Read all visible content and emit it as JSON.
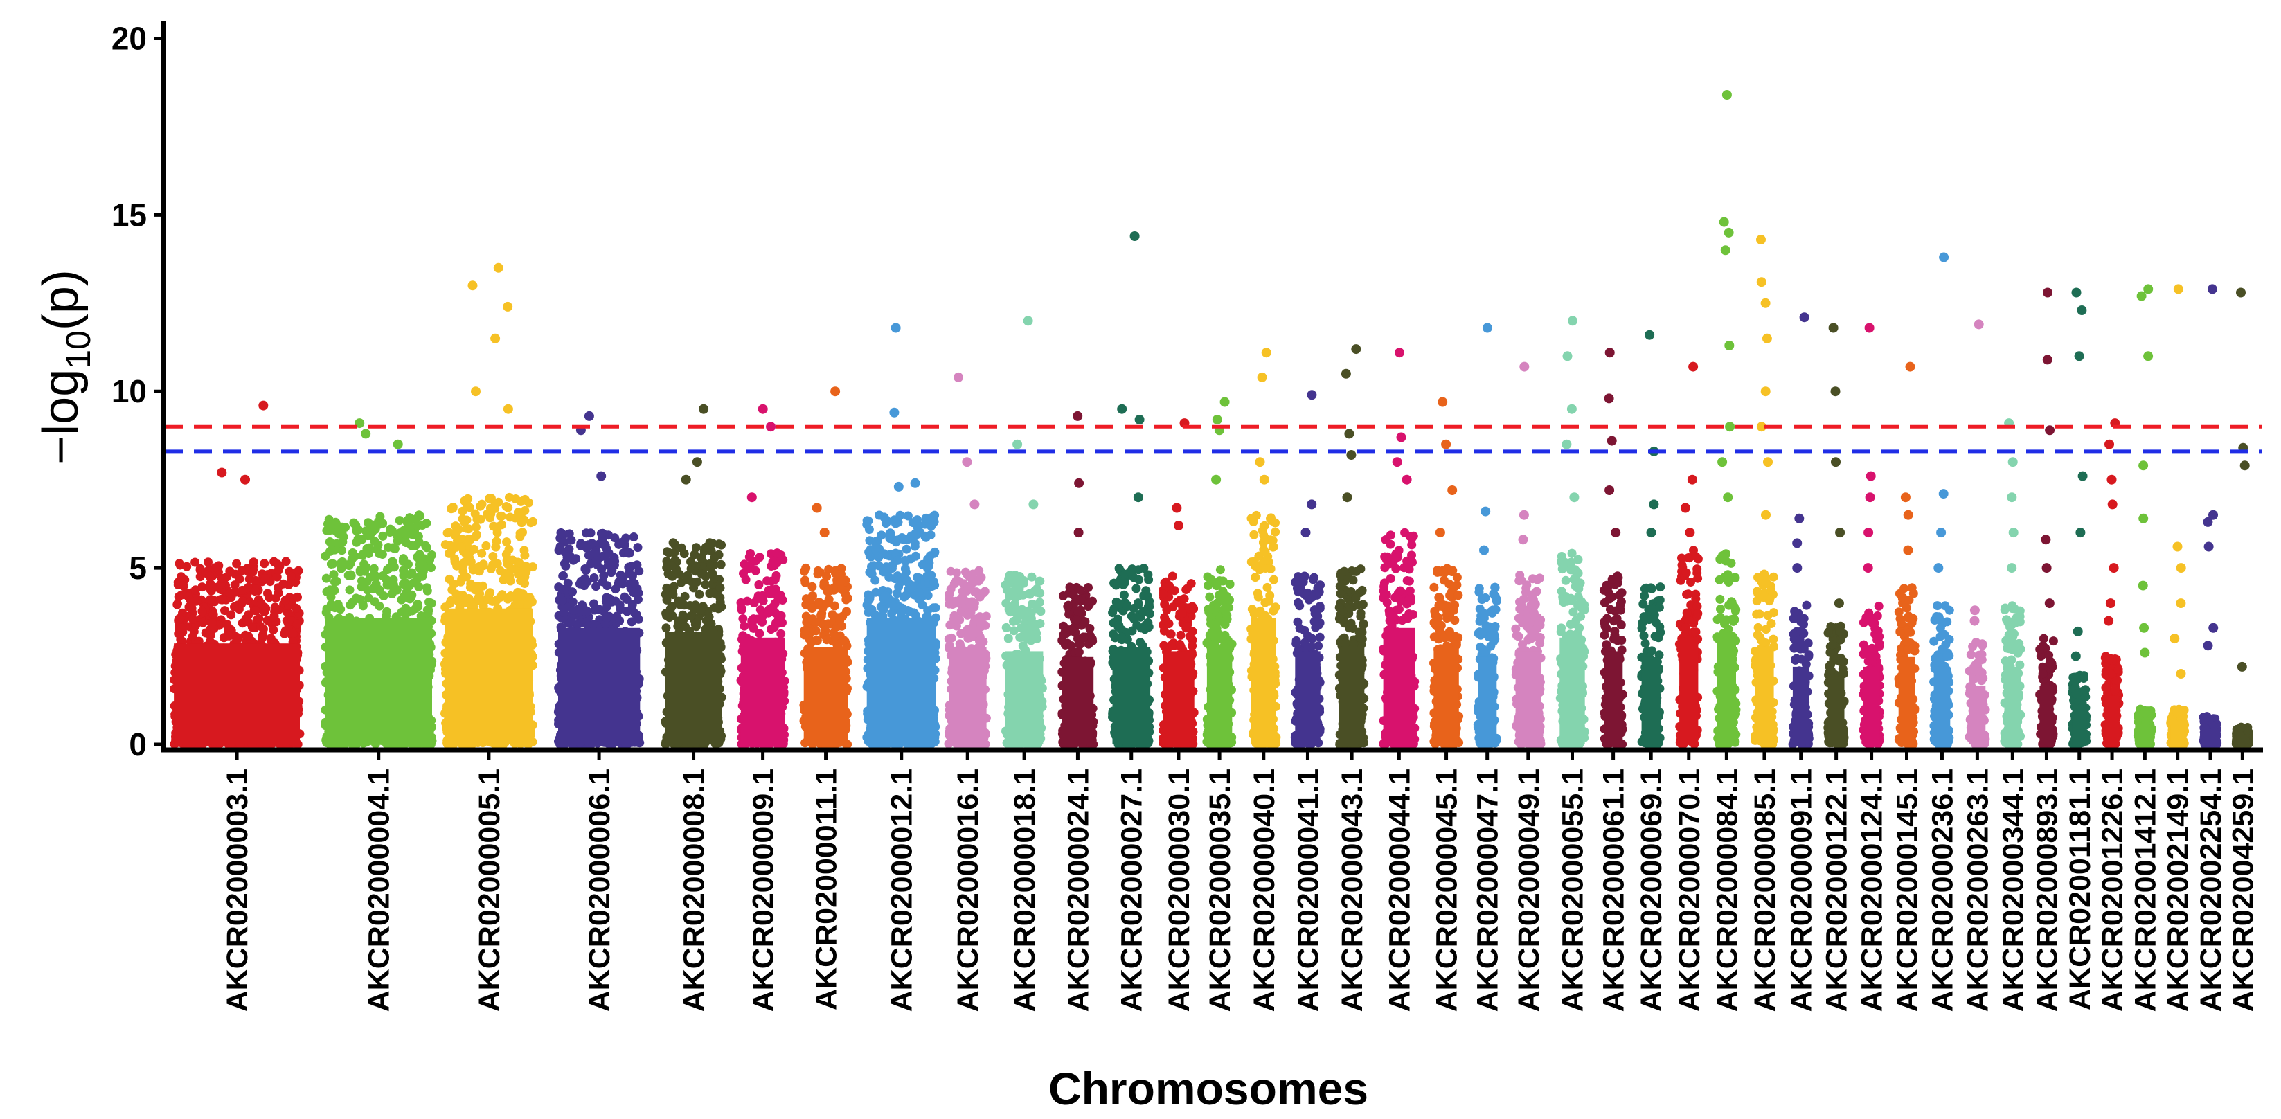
{
  "chart_data": {
    "type": "scatter",
    "title": "",
    "xlabel": "Chromosomes",
    "ylabel_prefix": "−log",
    "ylabel_sub": "10",
    "ylabel_suffix": "(p)",
    "ylim": [
      0,
      20.5
    ],
    "yticks": [
      0,
      5,
      10,
      15,
      20
    ],
    "thresholds": [
      {
        "name": "significance",
        "value": 9.0,
        "color": "#ee1c25"
      },
      {
        "name": "suggestive",
        "value": 8.3,
        "color": "#1f2de6"
      }
    ],
    "palette": [
      "#d7191f",
      "#6ec23a",
      "#f6c125",
      "#44348f",
      "#4a4f25",
      "#d8126d",
      "#e8631b",
      "#4798d8",
      "#d584bf",
      "#84d4ae",
      "#7d1533",
      "#1e6d54"
    ],
    "series": [
      {
        "name": "AKCR02000003.1",
        "start": 0,
        "end": 1.0,
        "maxBase": 5.2,
        "outliers": [
          7.5,
          7.7,
          9.6
        ],
        "color": "#d7191f"
      },
      {
        "name": "AKCR02000004.1",
        "start": 1.2,
        "end": 2.05,
        "maxBase": 6.5,
        "outliers": [
          8.5,
          8.8,
          9.1
        ],
        "color": "#6ec23a"
      },
      {
        "name": "AKCR02000005.1",
        "start": 2.15,
        "end": 2.85,
        "maxBase": 7.0,
        "outliers": [
          9.5,
          10.0,
          11.5,
          12.4,
          13.0,
          13.5
        ],
        "color": "#f6c125"
      },
      {
        "name": "AKCR02000006.1",
        "start": 3.05,
        "end": 3.7,
        "maxBase": 6.0,
        "outliers": [
          7.6,
          8.9,
          9.3
        ],
        "color": "#44348f"
      },
      {
        "name": "AKCR02000008.1",
        "start": 3.9,
        "end": 4.35,
        "maxBase": 5.8,
        "outliers": [
          7.5,
          8.0,
          9.5
        ],
        "color": "#4a4f25"
      },
      {
        "name": "AKCR02000009.1",
        "start": 4.5,
        "end": 4.85,
        "maxBase": 5.5,
        "outliers": [
          7.0,
          9.0,
          9.5
        ],
        "color": "#d8126d"
      },
      {
        "name": "AKCR02000011.1",
        "start": 5.0,
        "end": 5.35,
        "maxBase": 5.0,
        "outliers": [
          6.0,
          6.7,
          10.0
        ],
        "color": "#e8631b"
      },
      {
        "name": "AKCR02000012.1",
        "start": 5.5,
        "end": 6.05,
        "maxBase": 6.5,
        "outliers": [
          7.3,
          7.4,
          9.4,
          11.8
        ],
        "color": "#4798d8"
      },
      {
        "name": "AKCR02000016.1",
        "start": 6.15,
        "end": 6.45,
        "maxBase": 5.0,
        "outliers": [
          6.8,
          8.0,
          10.4
        ],
        "color": "#d584bf"
      },
      {
        "name": "AKCR02000018.1",
        "start": 6.6,
        "end": 6.9,
        "maxBase": 4.8,
        "outliers": [
          6.8,
          8.5,
          12.0
        ],
        "color": "#84d4ae"
      },
      {
        "name": "AKCR02000024.1",
        "start": 7.05,
        "end": 7.3,
        "maxBase": 4.5,
        "outliers": [
          6.0,
          7.4,
          9.3
        ],
        "color": "#7d1533"
      },
      {
        "name": "AKCR02000027.1",
        "start": 7.45,
        "end": 7.75,
        "maxBase": 5.0,
        "outliers": [
          7.0,
          9.2,
          9.5,
          14.4
        ],
        "color": "#1e6d54"
      },
      {
        "name": "AKCR02000030.1",
        "start": 7.85,
        "end": 8.1,
        "maxBase": 4.8,
        "outliers": [
          6.2,
          6.7,
          9.1
        ],
        "color": "#d7191f"
      },
      {
        "name": "AKCR02000035.1",
        "start": 8.2,
        "end": 8.4,
        "maxBase": 5.0,
        "outliers": [
          7.5,
          8.9,
          9.2,
          9.7
        ],
        "color": "#6ec23a"
      },
      {
        "name": "AKCR02000040.1",
        "start": 8.55,
        "end": 8.75,
        "maxBase": 6.5,
        "outliers": [
          7.5,
          8.0,
          10.4,
          11.1
        ],
        "color": "#f6c125"
      },
      {
        "name": "AKCR02000041.1",
        "start": 8.9,
        "end": 9.1,
        "maxBase": 4.8,
        "outliers": [
          6.0,
          6.8,
          9.9
        ],
        "color": "#44348f"
      },
      {
        "name": "AKCR02000043.1",
        "start": 9.25,
        "end": 9.45,
        "maxBase": 5.0,
        "outliers": [
          7.0,
          8.2,
          8.8,
          10.5,
          11.2
        ],
        "color": "#4a4f25"
      },
      {
        "name": "AKCR02000044.1",
        "start": 9.6,
        "end": 9.85,
        "maxBase": 6.0,
        "outliers": [
          7.5,
          8.0,
          8.7,
          11.1
        ],
        "color": "#d8126d"
      },
      {
        "name": "AKCR02000045.1",
        "start": 10.0,
        "end": 10.2,
        "maxBase": 5.0,
        "outliers": [
          6.0,
          7.2,
          8.5,
          9.7
        ],
        "color": "#e8631b"
      },
      {
        "name": "AKCR02000047.1",
        "start": 10.35,
        "end": 10.5,
        "maxBase": 4.5,
        "outliers": [
          5.5,
          6.6,
          11.8
        ],
        "color": "#4798d8"
      },
      {
        "name": "AKCR02000049.1",
        "start": 10.65,
        "end": 10.85,
        "maxBase": 4.8,
        "outliers": [
          5.8,
          6.5,
          10.7
        ],
        "color": "#d584bf"
      },
      {
        "name": "AKCR02000055.1",
        "start": 11.0,
        "end": 11.2,
        "maxBase": 5.5,
        "outliers": [
          7.0,
          8.5,
          9.5,
          11.0,
          12.0
        ],
        "color": "#84d4ae"
      },
      {
        "name": "AKCR02000061.1",
        "start": 11.35,
        "end": 11.5,
        "maxBase": 4.8,
        "outliers": [
          6.0,
          7.2,
          8.6,
          9.8,
          11.1
        ],
        "color": "#7d1533"
      },
      {
        "name": "AKCR02000069.1",
        "start": 11.65,
        "end": 11.8,
        "maxBase": 4.5,
        "outliers": [
          6.0,
          6.8,
          8.3,
          11.6
        ],
        "color": "#1e6d54"
      },
      {
        "name": "AKCR02000070.1",
        "start": 11.95,
        "end": 12.1,
        "maxBase": 5.5,
        "outliers": [
          6.0,
          6.7,
          7.5,
          10.7
        ],
        "color": "#d7191f"
      },
      {
        "name": "AKCR02000084.1",
        "start": 12.25,
        "end": 12.4,
        "maxBase": 5.5,
        "outliers": [
          7.0,
          8.0,
          9.0,
          11.3,
          14.0,
          14.5,
          14.8,
          18.4
        ],
        "color": "#6ec23a"
      },
      {
        "name": "AKCR02000085.1",
        "start": 12.55,
        "end": 12.7,
        "maxBase": 5.0,
        "outliers": [
          6.5,
          8.0,
          9.0,
          10.0,
          11.5,
          12.5,
          13.1,
          14.3
        ],
        "color": "#f6c125"
      },
      {
        "name": "AKCR02000091.1",
        "start": 12.85,
        "end": 12.98,
        "maxBase": 4.0,
        "outliers": [
          5.0,
          5.7,
          6.4,
          12.1
        ],
        "color": "#44348f"
      },
      {
        "name": "AKCR02000122.1",
        "start": 13.13,
        "end": 13.26,
        "maxBase": 3.5,
        "outliers": [
          4.0,
          6.0,
          8.0,
          10.0,
          11.8
        ],
        "color": "#4a4f25"
      },
      {
        "name": "AKCR02000124.1",
        "start": 13.41,
        "end": 13.54,
        "maxBase": 4.0,
        "outliers": [
          5.0,
          6.0,
          7.0,
          7.6,
          11.8
        ],
        "color": "#d8126d"
      },
      {
        "name": "AKCR02000145.1",
        "start": 13.69,
        "end": 13.82,
        "maxBase": 4.5,
        "outliers": [
          5.5,
          6.5,
          7.0,
          10.7
        ],
        "color": "#e8631b"
      },
      {
        "name": "AKCR02000236.1",
        "start": 13.97,
        "end": 14.1,
        "maxBase": 4.0,
        "outliers": [
          5.0,
          6.0,
          7.1,
          13.8
        ],
        "color": "#4798d8"
      },
      {
        "name": "AKCR02000263.1",
        "start": 14.25,
        "end": 14.38,
        "maxBase": 3.0,
        "outliers": [
          3.5,
          3.8,
          11.9
        ],
        "color": "#d584bf"
      },
      {
        "name": "AKCR02000344.1",
        "start": 14.53,
        "end": 14.66,
        "maxBase": 4.0,
        "outliers": [
          5.0,
          6.0,
          7.0,
          8.0,
          9.1
        ],
        "color": "#84d4ae"
      },
      {
        "name": "AKCR02000893.1",
        "start": 14.81,
        "end": 14.92,
        "maxBase": 3.0,
        "outliers": [
          4.0,
          5.0,
          5.8,
          8.9,
          10.9,
          12.8
        ],
        "color": "#7d1533"
      },
      {
        "name": "AKCR02001181.1",
        "start": 15.07,
        "end": 15.18,
        "maxBase": 2.0,
        "outliers": [
          2.5,
          3.2,
          6.0,
          7.6,
          11.0,
          12.3,
          12.8
        ],
        "color": "#1e6d54"
      },
      {
        "name": "AKCR02001226.1",
        "start": 15.33,
        "end": 15.44,
        "maxBase": 2.5,
        "outliers": [
          3.5,
          4.0,
          5.0,
          6.8,
          7.5,
          8.5,
          9.1
        ],
        "color": "#d7191f"
      },
      {
        "name": "AKCR02001412.1",
        "start": 15.59,
        "end": 15.7,
        "maxBase": 1.0,
        "outliers": [
          2.6,
          3.3,
          4.5,
          6.4,
          7.9,
          11.0,
          12.7,
          12.9
        ],
        "color": "#6ec23a"
      },
      {
        "name": "AKCR02002149.1",
        "start": 15.85,
        "end": 15.96,
        "maxBase": 1.0,
        "outliers": [
          2.0,
          3.0,
          4.0,
          5.0,
          5.6,
          12.9
        ],
        "color": "#f6c125"
      },
      {
        "name": "AKCR02002254.1",
        "start": 16.11,
        "end": 16.22,
        "maxBase": 0.8,
        "outliers": [
          2.8,
          3.3,
          5.6,
          6.3,
          6.5,
          12.9
        ],
        "color": "#44348f"
      },
      {
        "name": "AKCR02004259.1",
        "start": 16.37,
        "end": 16.47,
        "maxBase": 0.5,
        "outliers": [
          2.2,
          7.9,
          8.4,
          12.8
        ],
        "color": "#4a4f25"
      }
    ],
    "xlim": [
      -0.05,
      16.55
    ]
  }
}
